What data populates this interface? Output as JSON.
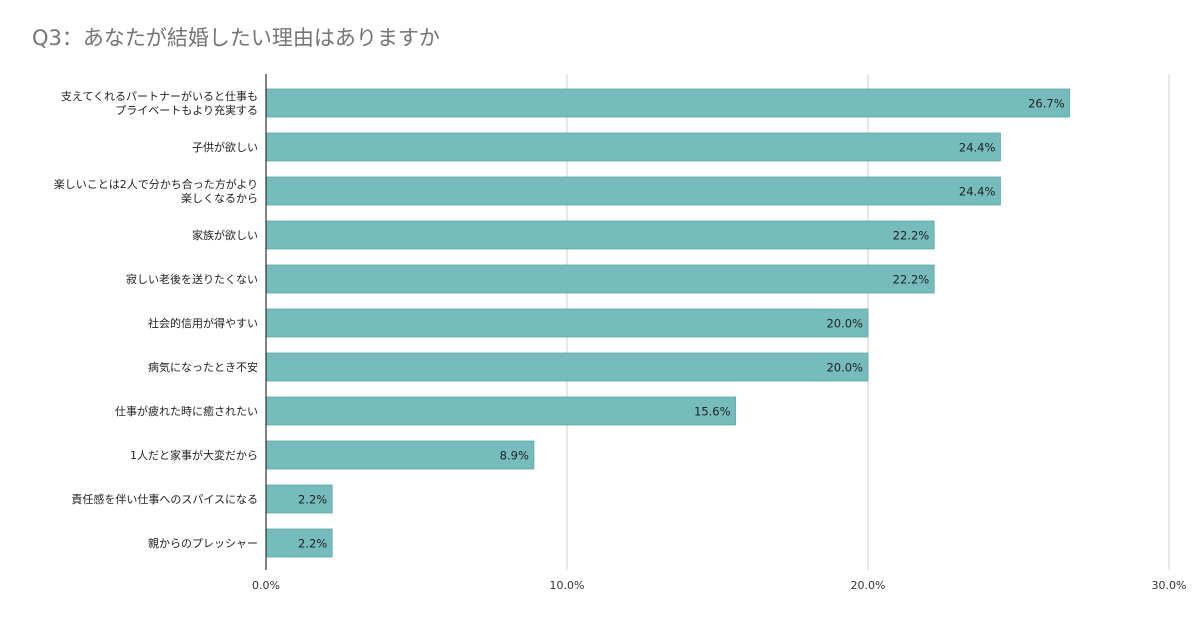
{
  "chart_data": {
    "type": "bar",
    "orientation": "horizontal",
    "title": "Q3：あなたが結婚したい理由はありますか",
    "categories": [
      [
        "支えてくれるパートナーがいると仕事も",
        "プライベートもより充実する"
      ],
      [
        "子供が欲しい"
      ],
      [
        "楽しいことは2人で分かち合った方がより",
        "楽しくなるから"
      ],
      [
        "家族が欲しい"
      ],
      [
        "寂しい老後を送りたくない"
      ],
      [
        "社会的信用が得やすい"
      ],
      [
        "病気になったとき不安"
      ],
      [
        "仕事が疲れた時に癒されたい"
      ],
      [
        "1人だと家事が大変だから"
      ],
      [
        "責任感を伴い仕事へのスパイスになる"
      ],
      [
        "親からのプレッシャー"
      ]
    ],
    "values": [
      26.7,
      24.4,
      24.4,
      22.2,
      22.2,
      20.0,
      20.0,
      15.6,
      8.9,
      2.2,
      2.2
    ],
    "value_labels": [
      "26.7%",
      "24.4%",
      "24.4%",
      "22.2%",
      "22.2%",
      "20.0%",
      "20.0%",
      "15.6%",
      "8.9%",
      "2.2%",
      "2.2%"
    ],
    "xlim": [
      0,
      30
    ],
    "x_ticks": [
      0,
      10,
      20,
      30
    ],
    "x_tick_labels": [
      "0.0%",
      "10.0%",
      "20.0%",
      "30.0%"
    ],
    "grid": true,
    "legend": "none",
    "colors": {
      "bar": "#76bcbc",
      "bar_edge": "#5fa9a9",
      "grid": "#d0d0d0",
      "axis": "#333333",
      "title": "#757575"
    }
  }
}
